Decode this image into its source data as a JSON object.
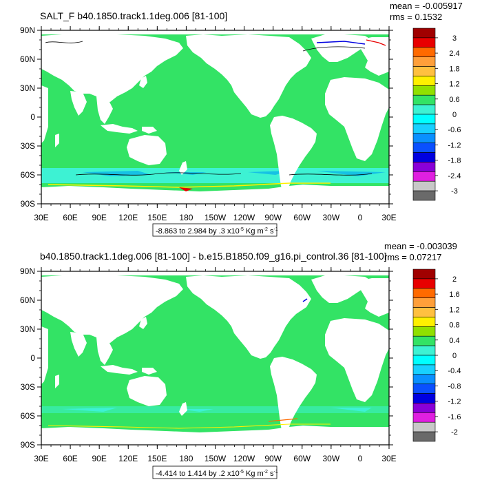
{
  "colors": {
    "ocean_main": "#33e365",
    "ice_cyan": "#3df2d3",
    "deep_cyan": "#16c1e4",
    "land": "#ffffff",
    "frame": "#000000"
  },
  "panels": [
    {
      "title": "SALT_F b40.1850.track1.1deg.006 [81-100]",
      "mean": "mean = -0.005917",
      "rms": "rms = 0.1532",
      "cn_info_prefix": "-8.863 to 2.984 by .3 x10",
      "cn_info_exp": "-5",
      "cn_info_units": " Kg m",
      "cn_info_units_exp1": "-2",
      "cn_info_units_s": " s",
      "cn_info_units_exp2": "-1",
      "lat_labels": [
        "90N",
        "60N",
        "30N",
        "0",
        "30S",
        "60S",
        "90S"
      ],
      "lon_labels": [
        "30E",
        "60E",
        "90E",
        "120E",
        "150E",
        "180",
        "150W",
        "120W",
        "90W",
        "60W",
        "30W",
        "0",
        "30E"
      ],
      "colorbar_labels": [
        "3",
        "2.4",
        "1.8",
        "1.2",
        "0.6",
        "0",
        "-0.6",
        "-1.2",
        "-1.8",
        "-2.4",
        "-3"
      ],
      "colorbar_colors": [
        "#a00000",
        "#e80000",
        "#ff6a00",
        "#ff9f3a",
        "#ffc040",
        "#fff000",
        "#90e000",
        "#33e365",
        "#3df2d3",
        "#00ffff",
        "#18d0ff",
        "#0a90ff",
        "#0a50ff",
        "#0000e0",
        "#8a00d8",
        "#e020e0",
        "#c8c8c8",
        "#6a6a6a"
      ]
    },
    {
      "title": "b40.1850.track1.1deg.006 [81-100] - b.e15.B1850.f09_g16.pi_control.36 [81-100]",
      "mean": "mean = -0.003039",
      "rms": "rms = 0.07217",
      "cn_info_prefix": "-4.414 to 1.414 by .2 x10",
      "cn_info_exp": "-5",
      "cn_info_units": " Kg m",
      "cn_info_units_exp1": "-2",
      "cn_info_units_s": " s",
      "cn_info_units_exp2": "-1",
      "lat_labels": [
        "90N",
        "60N",
        "30N",
        "0",
        "30S",
        "60S",
        "90S"
      ],
      "lon_labels": [
        "30E",
        "60E",
        "90E",
        "120E",
        "150E",
        "180",
        "150W",
        "120W",
        "90W",
        "60W",
        "30W",
        "0",
        "30E"
      ],
      "colorbar_labels": [
        "2",
        "1.6",
        "1.2",
        "0.8",
        "0.4",
        "0",
        "-0.4",
        "-0.8",
        "-1.2",
        "-1.6",
        "-2"
      ],
      "colorbar_colors": [
        "#a00000",
        "#e80000",
        "#ff6a00",
        "#ff9f3a",
        "#ffc040",
        "#fff000",
        "#90e000",
        "#33e365",
        "#3df2d3",
        "#00ffff",
        "#18d0ff",
        "#0a90ff",
        "#0a50ff",
        "#0000e0",
        "#8a00d8",
        "#e020e0",
        "#c8c8c8",
        "#6a6a6a"
      ]
    }
  ]
}
